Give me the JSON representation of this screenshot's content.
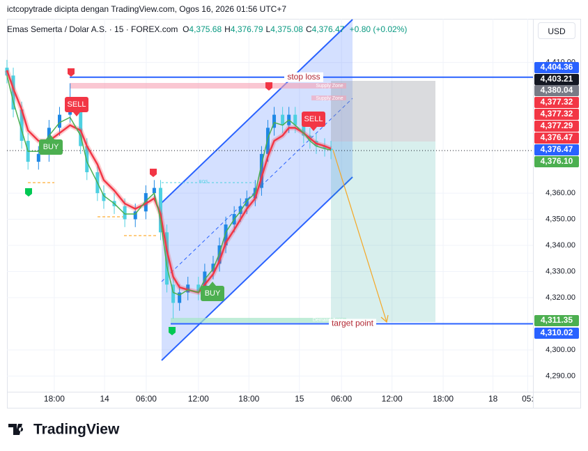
{
  "header": {
    "credit": "ictcopytrade dicipta dengan TradingView.com, Ogos 16, 2026 01:56 UTC+7",
    "symbol": "Emas Semerta / Dolar A.S. · 15 · FOREX.com",
    "ohlc": [
      {
        "key": "O",
        "value": "4,375.68"
      },
      {
        "key": "H",
        "value": "4,376.79"
      },
      {
        "key": "L",
        "value": "4,375.08"
      },
      {
        "key": "C",
        "value": "4,376.47"
      }
    ],
    "change": "+0.80 (+0.02%)",
    "currency": "USD"
  },
  "chart_data": {
    "type": "candlestick",
    "x": [
      0,
      3,
      7,
      10,
      15,
      20,
      25,
      30,
      35,
      38,
      43,
      46,
      51,
      56,
      61,
      66,
      70,
      73,
      76,
      79,
      82,
      86,
      91,
      94,
      98,
      101,
      104,
      108,
      111,
      114,
      118,
      121,
      124,
      127,
      131,
      134,
      137,
      141,
      144,
      147,
      151,
      154
    ],
    "open": [
      4408,
      4405,
      4392,
      4380,
      4372,
      4375,
      4385,
      4390,
      4392,
      4378,
      4368,
      4360,
      4357,
      4355,
      4350,
      4353,
      4360,
      4362,
      4345,
      4325,
      4318,
      4322,
      4325,
      4322,
      4330,
      4333,
      4340,
      4348,
      4352,
      4355,
      4358,
      4362,
      4375,
      4385,
      4390,
      4386,
      4390,
      4386,
      4382,
      4380,
      4378,
      4377
    ],
    "high": [
      4411,
      4408,
      4395,
      4383,
      4378,
      4388,
      4393,
      4402,
      4395,
      4381,
      4371,
      4363,
      4360,
      4358,
      4356,
      4363,
      4365,
      4365,
      4348,
      4328,
      4325,
      4328,
      4328,
      4333,
      4336,
      4343,
      4351,
      4355,
      4358,
      4361,
      4365,
      4378,
      4388,
      4393,
      4393,
      4393,
      4393,
      4389,
      4385,
      4383,
      4381,
      4380
    ],
    "low": [
      4402,
      4389,
      4377,
      4369,
      4369,
      4372,
      4382,
      4387,
      4375,
      4365,
      4357,
      4354,
      4352,
      4347,
      4347,
      4350,
      4357,
      4342,
      4322,
      4312,
      4315,
      4319,
      4319,
      4319,
      4327,
      4330,
      4337,
      4345,
      4349,
      4352,
      4355,
      4359,
      4372,
      4382,
      4383,
      4383,
      4383,
      4379,
      4377,
      4375,
      4374,
      4373
    ],
    "close": [
      4405,
      4392,
      4380,
      4372,
      4375,
      4385,
      4390,
      4392,
      4378,
      4368,
      4360,
      4357,
      4355,
      4350,
      4353,
      4360,
      4362,
      4345,
      4325,
      4318,
      4322,
      4325,
      4322,
      4330,
      4333,
      4340,
      4348,
      4352,
      4355,
      4358,
      4362,
      4375,
      4385,
      4390,
      4386,
      4390,
      4386,
      4382,
      4380,
      4378,
      4377,
      4376.47
    ],
    "up_color": "#1e88e5",
    "down_color": "#4dd0e1",
    "overlays": [
      {
        "color": "#f23645",
        "values": [
          4407,
          4400,
          4392,
          4384,
          4380,
          4380,
          4383,
          4386,
          4384,
          4378,
          4371,
          4365,
          4361,
          4356,
          4354,
          4356,
          4358,
          4352,
          4338,
          4328,
          4324,
          4323,
          4322,
          4325,
          4329,
          4334,
          4341,
          4346,
          4350,
          4354,
          4358,
          4366,
          4374,
          4380,
          4382,
          4385,
          4385,
          4383,
          4381,
          4379,
          4378,
          4377
        ]
      },
      {
        "color": "#4caf50",
        "values": [
          4405,
          4395,
          4384,
          4376,
          4376,
          4382,
          4387,
          4389,
          4382,
          4372,
          4364,
          4359,
          4356,
          4352,
          4352,
          4357,
          4360,
          4350,
          4332,
          4322,
          4321,
          4323,
          4322,
          4327,
          4331,
          4337,
          4345,
          4350,
          4353,
          4357,
          4360,
          4371,
          4381,
          4387,
          4386,
          4388,
          4386,
          4383,
          4380,
          4378,
          4377,
          4376.5
        ]
      }
    ],
    "xlim": [
      0,
      250
    ],
    "xticks": [
      {
        "value": 22.5,
        "label": "18:00"
      },
      {
        "value": 46.4,
        "label": "14"
      },
      {
        "value": 66.2,
        "label": "06:00"
      },
      {
        "value": 91,
        "label": "12:00"
      },
      {
        "value": 115,
        "label": "18:00"
      },
      {
        "value": 139,
        "label": "15"
      },
      {
        "value": 159,
        "label": "06:00"
      },
      {
        "value": 183,
        "label": "12:00"
      },
      {
        "value": 207.3,
        "label": "18:00"
      },
      {
        "value": 231,
        "label": "18"
      },
      {
        "value": 247.5,
        "label": "05:"
      }
    ],
    "ylim": [
      4284,
      4426.7
    ],
    "yticks": [
      {
        "value": 4410,
        "label": "4,410.00"
      },
      {
        "value": 4360,
        "label": "4,360.00"
      },
      {
        "value": 4350,
        "label": "4,350.00"
      },
      {
        "value": 4340,
        "label": "4,340.00"
      },
      {
        "value": 4330,
        "label": "4,330.00"
      },
      {
        "value": 4320,
        "label": "4,320.00"
      },
      {
        "value": 4300,
        "label": "4,300.00"
      },
      {
        "value": 4290,
        "label": "4,290.00"
      }
    ],
    "grid": true,
    "price_tags": [
      {
        "value": 4404.36,
        "label": "4,404.36",
        "color": "#2962ff"
      },
      {
        "value": 4403.21,
        "label": "4,403.21",
        "color": "#131722"
      },
      {
        "value": 4380.04,
        "label": "4,380.04",
        "color": "#787b86"
      },
      {
        "value": 4377.32,
        "label": "4,377.32",
        "color": "#f23645"
      },
      {
        "value": 4377.32,
        "label": "4,377.32",
        "color": "#f23645"
      },
      {
        "value": 4377.29,
        "label": "4,377.29",
        "color": "#f23645"
      },
      {
        "value": 4376.47,
        "label": "4,376.47",
        "color": "#f23645"
      },
      {
        "value": 4376.47,
        "label": "4,376.47",
        "color": "#2962ff"
      },
      {
        "value": 4376.1,
        "label": "4,376.10",
        "color": "#4caf50"
      },
      {
        "value": 4311.35,
        "label": "4,311.35",
        "color": "#4caf50"
      },
      {
        "value": 4310.02,
        "label": "4,310.02",
        "color": "#2962ff"
      }
    ],
    "annotations": {
      "stop_loss": "stop loss",
      "target": "target point",
      "supply": "Supply Zone",
      "bos": "BOS",
      "demand": "Demand Zone",
      "signals": [
        "SELL",
        "BUY",
        "SELL",
        "BUY"
      ]
    }
  },
  "logo": "TradingView"
}
